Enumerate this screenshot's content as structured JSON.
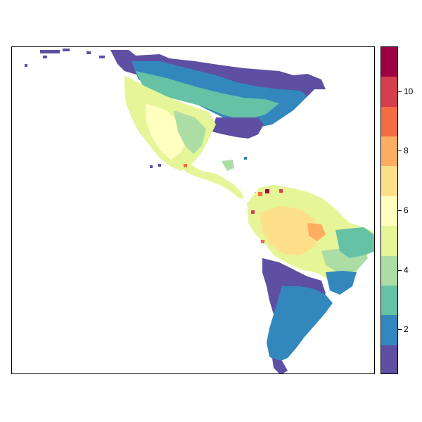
{
  "map": {
    "region": "Americas",
    "palette_order": [
      "#5e4fa2",
      "#3288bd",
      "#66c2a5",
      "#abdda4",
      "#e6f598",
      "#ffffbf",
      "#fee08b",
      "#fdae61",
      "#f46d43",
      "#d53e4f",
      "#9e0142"
    ]
  },
  "legend": {
    "min": 0.5,
    "max": 11.5,
    "bins": [
      {
        "value": 1,
        "color": "#5e4fa2"
      },
      {
        "value": 2,
        "color": "#3288bd"
      },
      {
        "value": 3,
        "color": "#66c2a5"
      },
      {
        "value": 4,
        "color": "#abdda4"
      },
      {
        "value": 5,
        "color": "#e6f598"
      },
      {
        "value": 6,
        "color": "#ffffbf"
      },
      {
        "value": 7,
        "color": "#fee08b"
      },
      {
        "value": 8,
        "color": "#fdae61"
      },
      {
        "value": 9,
        "color": "#f46d43"
      },
      {
        "value": 10,
        "color": "#d53e4f"
      },
      {
        "value": 11,
        "color": "#9e0142"
      }
    ],
    "ticks": [
      {
        "value": 2,
        "label": "2"
      },
      {
        "value": 4,
        "label": "4"
      },
      {
        "value": 6,
        "label": "6"
      },
      {
        "value": 8,
        "label": "8"
      },
      {
        "value": 10,
        "label": "10"
      }
    ]
  }
}
